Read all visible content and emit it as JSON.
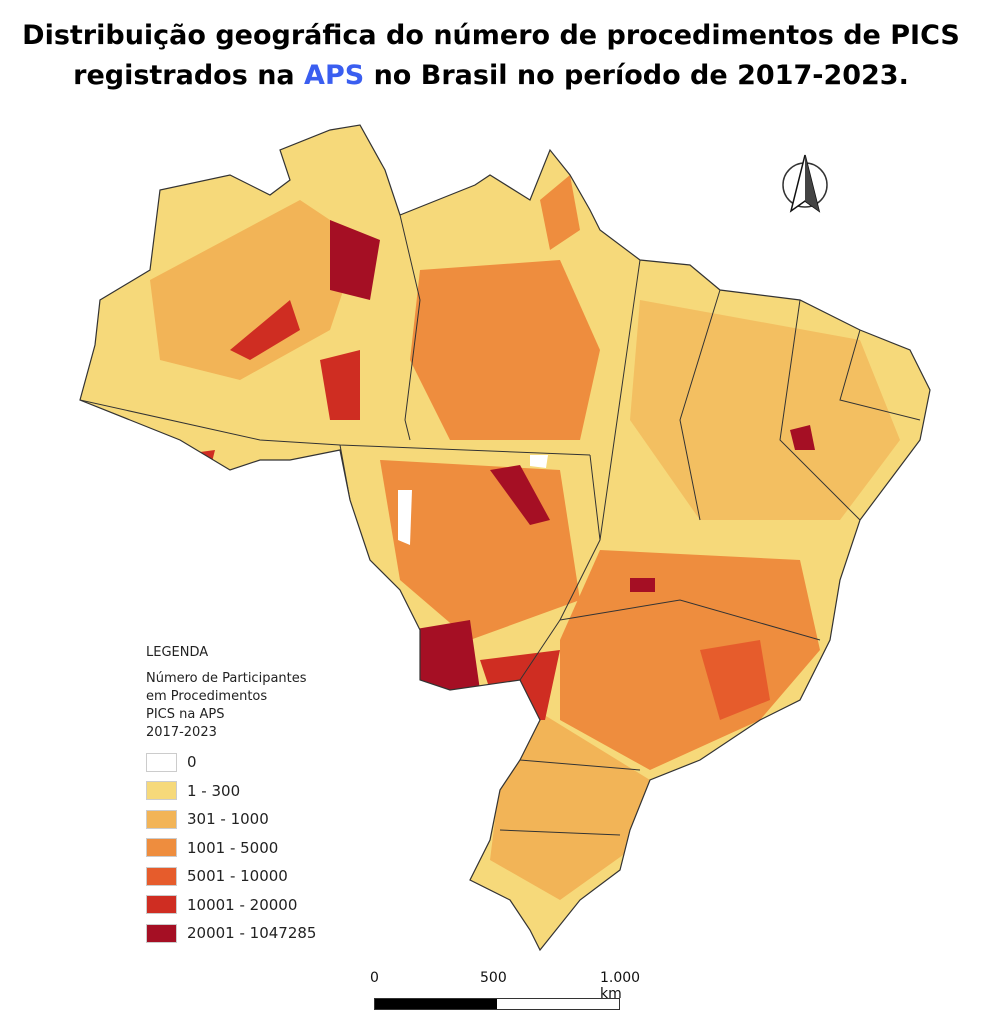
{
  "title": {
    "line1": "Distribuição geográfica do número de procedimentos de PICS",
    "line2_pre": "registrados na ",
    "line2_highlight": "APS",
    "line2_post": " no Brasil no período de 2017-2023."
  },
  "colors": {
    "highlight": "#3a5ef0",
    "class_0": "#ffffff",
    "class_1": "#f6d97a",
    "class_2": "#f2b457",
    "class_3": "#ee8d3e",
    "class_4": "#e65c2c",
    "class_5": "#cf2d22",
    "class_6": "#a50f24"
  },
  "legend": {
    "heading": "LEGENDA",
    "subtitle": [
      "Número de Participantes",
      "em Procedimentos",
      "PICS na APS",
      "2017-2023"
    ],
    "classes": [
      {
        "label": "0",
        "color": "#ffffff"
      },
      {
        "label": "1 - 300",
        "color": "#f6d97a"
      },
      {
        "label": "301 - 1000",
        "color": "#f2b457"
      },
      {
        "label": "1001 - 5000",
        "color": "#ee8d3e"
      },
      {
        "label": "5001 - 10000",
        "color": "#e65c2c"
      },
      {
        "label": "10001 - 20000",
        "color": "#cf2d22"
      },
      {
        "label": "20001 - 1047285",
        "color": "#a50f24"
      }
    ]
  },
  "scale_bar": {
    "labels": [
      "0",
      "500",
      "1.000 km"
    ]
  },
  "north_arrow_icon": "north-arrow-icon"
}
